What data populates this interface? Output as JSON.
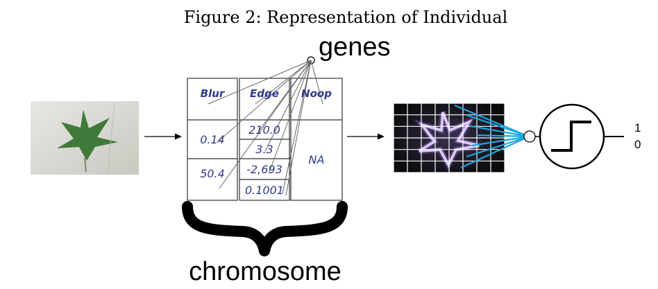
{
  "caption": "Figure 2: Representation of Individual",
  "genes_label": "genes",
  "chromosome_label": "chromosome",
  "columns": [
    {
      "header": "Blur",
      "values": [
        "0.14",
        "50.4"
      ]
    },
    {
      "header": "Edge",
      "values": [
        "210.0",
        "3.3",
        "-2,693",
        "0.1001"
      ]
    },
    {
      "header": "Noop",
      "values": [
        "NA"
      ]
    }
  ],
  "outputs": [
    "1",
    "0"
  ],
  "colors": {
    "table_text": "#2d3a8c",
    "connection_lines": "#1aa7e0",
    "leaf": "#3f7a3a",
    "photo_background": "#d9d8d2",
    "edge_glow": "#f2e6ff"
  },
  "icons": {
    "leaf_photo": "maple-leaf-photo",
    "edge_image": "edge-detected-leaf-grid",
    "activation": "step-function-icon",
    "brace": "curly-brace"
  }
}
